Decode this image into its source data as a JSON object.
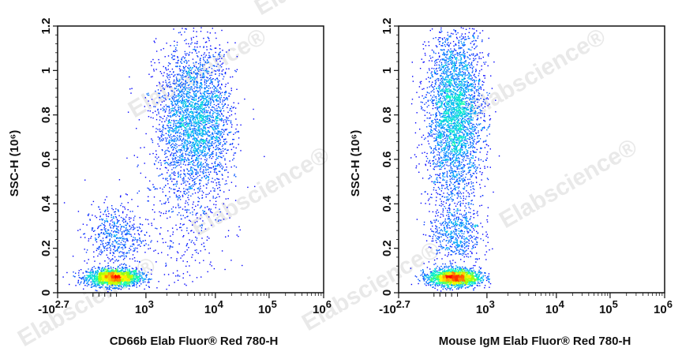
{
  "watermark": "Elabscience®",
  "colormap": [
    "#0000ff",
    "#00a0ff",
    "#00ffc0",
    "#a0ff00",
    "#ffff00",
    "#ff8000",
    "#ff0000"
  ],
  "chart_data": [
    {
      "type": "scatter",
      "subtype": "flow-cytometry-density-plot",
      "xlabel": "CD66b Elab Fluor® Red 780-H",
      "ylabel": "SSC-H (10⁶)",
      "x_scale": "biexponential",
      "x_ticks": [
        {
          "value": -501,
          "label": "-10",
          "exp": "2.7"
        },
        {
          "value": 1000,
          "label": "10",
          "exp": "3"
        },
        {
          "value": 10000,
          "label": "10",
          "exp": "4"
        },
        {
          "value": 100000,
          "label": "10",
          "exp": "5"
        },
        {
          "value": 1000000,
          "label": "10",
          "exp": "6"
        }
      ],
      "ylim": [
        0,
        1.2
      ],
      "y_ticks": [
        "0",
        "0.2",
        "0.4",
        "0.6",
        "0.8",
        "1",
        "1.2"
      ],
      "populations": [
        {
          "x_center": 450,
          "x_sd": 230,
          "y_center": 0.07,
          "y_sd": 0.02,
          "n": 1800
        },
        {
          "x_center": 450,
          "x_sd": 250,
          "y_center": 0.26,
          "y_sd": 0.07,
          "n": 500
        },
        {
          "x_log_center": 3.7,
          "x_log_sd": 0.28,
          "y_center": 0.77,
          "y_sd": 0.17,
          "n": 3000
        },
        {
          "x_log_center": 3.4,
          "x_log_sd": 0.4,
          "y_center": 0.3,
          "y_sd": 0.15,
          "n": 300
        }
      ]
    },
    {
      "type": "scatter",
      "subtype": "flow-cytometry-density-plot",
      "xlabel": "Mouse IgM Elab Fluor® Red 780-H",
      "ylabel": "SSC-H (10⁶)",
      "x_scale": "biexponential",
      "x_ticks": [
        {
          "value": -501,
          "label": "-10",
          "exp": "2.7"
        },
        {
          "value": 1000,
          "label": "10",
          "exp": "3"
        },
        {
          "value": 10000,
          "label": "10",
          "exp": "4"
        },
        {
          "value": 100000,
          "label": "10",
          "exp": "5"
        },
        {
          "value": 1000000,
          "label": "10",
          "exp": "6"
        }
      ],
      "ylim": [
        0,
        1.2
      ],
      "y_ticks": [
        "0",
        "0.2",
        "0.4",
        "0.6",
        "0.8",
        "1",
        "1.2"
      ],
      "populations": [
        {
          "x_center": 440,
          "x_sd": 220,
          "y_center": 0.07,
          "y_sd": 0.02,
          "n": 1800
        },
        {
          "x_center": 450,
          "x_sd": 220,
          "y_center": 0.27,
          "y_sd": 0.07,
          "n": 550
        },
        {
          "x_center": 450,
          "x_sd": 240,
          "y_center": 0.8,
          "y_sd": 0.2,
          "n": 3300
        }
      ]
    }
  ]
}
